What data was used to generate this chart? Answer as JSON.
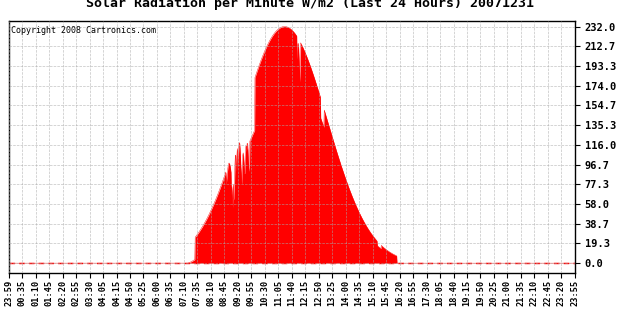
{
  "title": "Solar Radiation per Minute W/m2 (Last 24 Hours) 20071231",
  "copyright": "Copyright 2008 Cartronics.com",
  "bg_color": "#ffffff",
  "fill_color": "#ff0000",
  "grid_color": "#aaaaaa",
  "dashed_line_color": "#ff0000",
  "yticks": [
    0.0,
    19.3,
    38.7,
    58.0,
    77.3,
    96.7,
    116.0,
    135.3,
    154.7,
    174.0,
    193.3,
    212.7,
    232.0
  ],
  "ymax": 232.0,
  "ymin": 0.0,
  "xtick_labels": [
    "23:59",
    "00:35",
    "01:10",
    "01:45",
    "02:20",
    "02:55",
    "03:30",
    "04:05",
    "04:15",
    "04:50",
    "05:25",
    "06:00",
    "06:35",
    "07:10",
    "07:35",
    "08:10",
    "08:45",
    "09:20",
    "09:55",
    "10:30",
    "11:05",
    "11:40",
    "12:15",
    "12:50",
    "13:25",
    "14:00",
    "14:35",
    "15:10",
    "15:45",
    "16:20",
    "16:55",
    "17:30",
    "18:05",
    "18:40",
    "19:15",
    "19:50",
    "20:25",
    "21:00",
    "21:35",
    "22:10",
    "22:45",
    "23:20",
    "23:55"
  ],
  "sunrise_hour": 7.58,
  "sunset_hour": 16.42,
  "peak_hour": 11.67,
  "peak_value": 232.0,
  "sigma": 1.8
}
